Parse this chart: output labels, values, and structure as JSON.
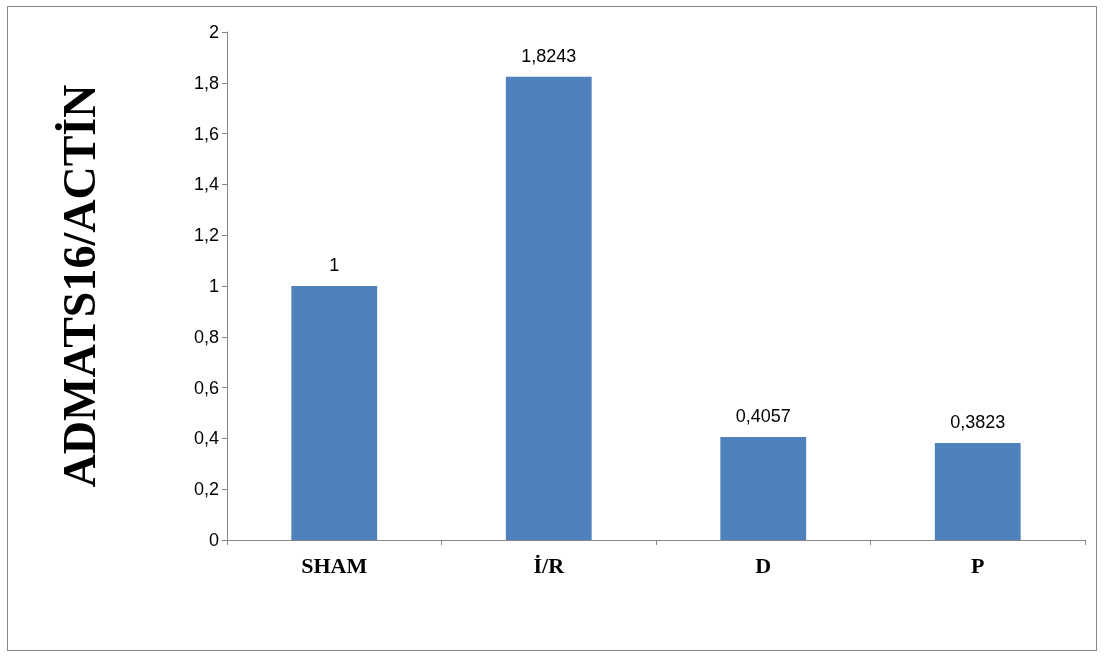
{
  "chart_data": {
    "type": "bar",
    "ylabel": "ADMATS16/ACTİN",
    "categories": [
      "SHAM",
      "İ/R",
      "D",
      "P"
    ],
    "values": [
      1,
      1.8243,
      0.4057,
      0.3823
    ],
    "value_labels": [
      "1",
      "1,8243",
      "0,4057",
      "0,3823"
    ],
    "color": "#4f81bd",
    "ylim": [
      0,
      2
    ],
    "yticks": [
      {
        "value": 0,
        "label": "0"
      },
      {
        "value": 0.2,
        "label": "0,2"
      },
      {
        "value": 0.4,
        "label": "0,4"
      },
      {
        "value": 0.6,
        "label": "0,6"
      },
      {
        "value": 0.8,
        "label": "0,8"
      },
      {
        "value": 1,
        "label": "1"
      },
      {
        "value": 1.2,
        "label": "1,2"
      },
      {
        "value": 1.4,
        "label": "1,4"
      },
      {
        "value": 1.6,
        "label": "1,6"
      },
      {
        "value": 1.8,
        "label": "1,8"
      },
      {
        "value": 2,
        "label": "2"
      }
    ],
    "grid": false
  }
}
